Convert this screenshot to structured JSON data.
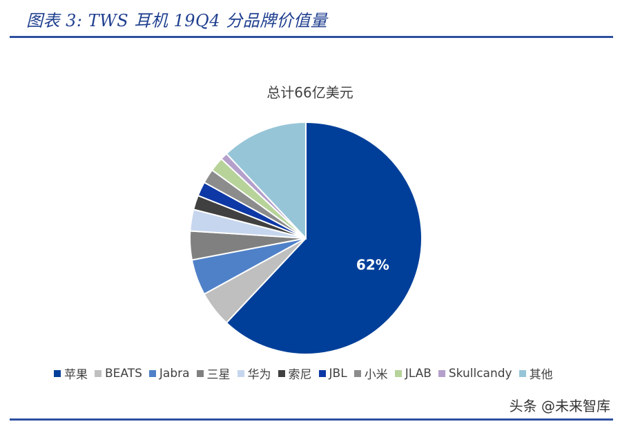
{
  "figure_caption": "图表 3:  TWS 耳机 19Q4 分品牌价值量",
  "watermark": "头条 @未来智库",
  "chart_data": {
    "type": "pie",
    "title": "总计66亿美元",
    "legend_position": "bottom",
    "start_angle": "top",
    "direction": "clockwise",
    "slices": [
      {
        "name": "苹果",
        "value": 62,
        "color": "#003f99",
        "label": "62%"
      },
      {
        "name": "BEATS",
        "value": 5,
        "color": "#bfbfbf"
      },
      {
        "name": "Jabra",
        "value": 5,
        "color": "#4f81c8"
      },
      {
        "name": "三星",
        "value": 4,
        "color": "#808080"
      },
      {
        "name": "华为",
        "value": 3,
        "color": "#c6d6ee"
      },
      {
        "name": "索尼",
        "value": 2,
        "color": "#404040"
      },
      {
        "name": "JBL",
        "value": 2,
        "color": "#0e38a6"
      },
      {
        "name": "小米",
        "value": 2,
        "color": "#8c8c8c"
      },
      {
        "name": "JLAB",
        "value": 2,
        "color": "#b7d39a"
      },
      {
        "name": "Skullcandy",
        "value": 1,
        "color": "#b4a0cb"
      },
      {
        "name": "其他",
        "value": 12,
        "color": "#97c5d8"
      }
    ]
  }
}
